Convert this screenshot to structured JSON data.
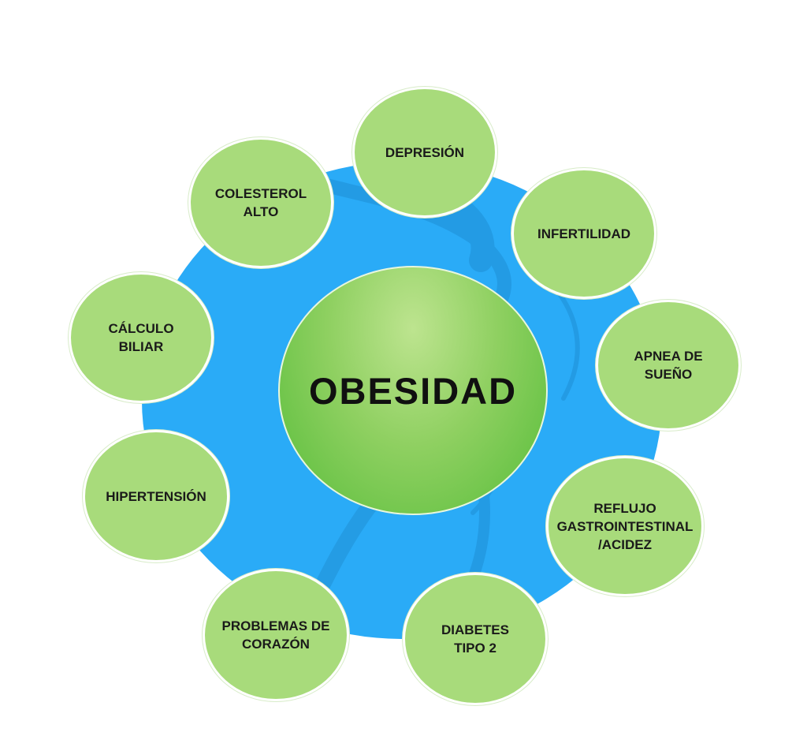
{
  "diagram": {
    "center_label": "OBESIDAD",
    "nodes": [
      {
        "id": "depresion",
        "label": "DEPRESIÓN"
      },
      {
        "id": "infertilidad",
        "label": "INFERTILIDAD"
      },
      {
        "id": "apnea",
        "label": "APNEA DE\nSUEÑO"
      },
      {
        "id": "reflujo",
        "label": "REFLUJO\nGASTROINTESTINAL\n/ACIDEZ"
      },
      {
        "id": "diabetes",
        "label": "DIABETES\nTIPO 2"
      },
      {
        "id": "corazon",
        "label": "PROBLEMAS DE\nCORAZÓN"
      },
      {
        "id": "hipertension",
        "label": "HIPERTENSIÓN"
      },
      {
        "id": "calculo",
        "label": "CÁLCULO\nBILIAR"
      },
      {
        "id": "colesterol",
        "label": "COLESTEROL\nALTO"
      }
    ],
    "colors": {
      "background_disc": "#2aabf7",
      "node_fill": "#a8db7b",
      "center_fill": "#6cc64a",
      "text": "#1a1a1a"
    }
  }
}
